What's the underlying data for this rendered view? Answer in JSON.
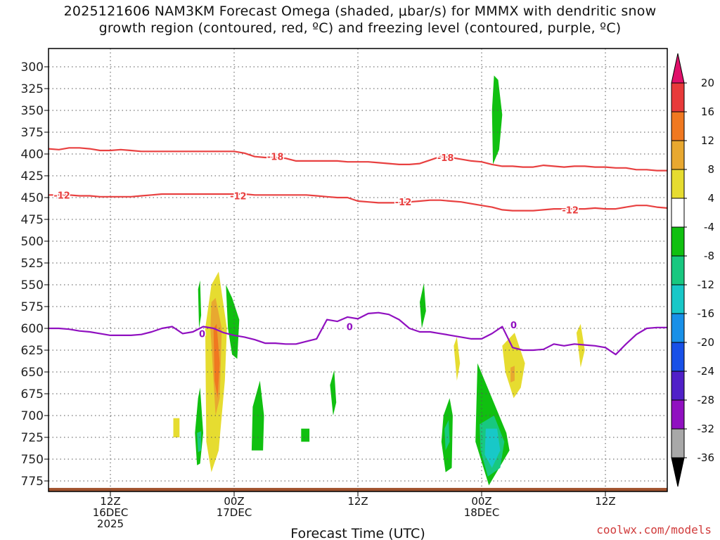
{
  "chart_data": {
    "type": "heatmap",
    "title": "2025121606 NAM3KM Forecast Omega (shaded, μbar/s) for MMMX with dendritic snow growth region (contoured, red, ºC) and freezing level (contoured, purple, ºC)",
    "title_lines": [
      "2025121606 NAM3KM Forecast Omega (shaded, μbar/s) for MMMX with dendritic snow",
      "growth region (contoured, red, ºC) and freezing level (contoured, purple, ºC)"
    ],
    "xlabel": "Forecast Time (UTC)",
    "ylabel": "",
    "y_axis": {
      "reversed": true,
      "ticks": [
        300,
        325,
        350,
        375,
        400,
        425,
        450,
        475,
        500,
        525,
        550,
        575,
        600,
        625,
        650,
        675,
        700,
        725,
        750,
        775
      ]
    },
    "x_axis": {
      "ticks": [
        {
          "hour": 6,
          "lines": [
            "12Z",
            "16DEC",
            "2025"
          ]
        },
        {
          "hour": 18,
          "lines": [
            "00Z",
            "17DEC"
          ]
        },
        {
          "hour": 30,
          "lines": [
            "12Z"
          ]
        },
        {
          "hour": 42,
          "lines": [
            "00Z",
            "18DEC"
          ]
        },
        {
          "hour": 54,
          "lines": [
            "12Z"
          ]
        }
      ],
      "range": [
        0,
        60
      ]
    },
    "grid": true,
    "colorbar": {
      "labels": [
        "20",
        "16",
        "12",
        "8",
        "4",
        "-4",
        "-8",
        "-12",
        "-16",
        "-20",
        "-24",
        "-28",
        "-32",
        "-36"
      ],
      "colors": [
        "#e0106a",
        "#e83a3a",
        "#f07820",
        "#e8a830",
        "#e6dc30",
        "#ffffff",
        "#10c010",
        "#18c880",
        "#18c8c8",
        "#1890e8",
        "#1850e8",
        "#5020c8",
        "#9010c0",
        "#a8a8a8",
        "#000000"
      ]
    },
    "series": [
      {
        "name": "-18",
        "color": "#e84040",
        "x": [
          0,
          1,
          2,
          3,
          4,
          5,
          6,
          7,
          8,
          9,
          10,
          11,
          12,
          13,
          14,
          15,
          16,
          17,
          18,
          19,
          20,
          21,
          22,
          23,
          24,
          25,
          26,
          27,
          28,
          29,
          30,
          31,
          32,
          33,
          34,
          35,
          36,
          37,
          38,
          39,
          40,
          41,
          42,
          43,
          44,
          45,
          46,
          47,
          48,
          49,
          50,
          51,
          52,
          53,
          54,
          55,
          56,
          57,
          58,
          59,
          60
        ],
        "p": [
          394,
          395,
          393,
          393,
          394,
          396,
          396,
          395,
          396,
          397,
          397,
          397,
          397,
          397,
          397,
          397,
          397,
          397,
          397,
          399,
          403,
          404,
          404,
          405,
          408,
          408,
          408,
          408,
          408,
          409,
          409,
          409,
          410,
          411,
          412,
          412,
          411,
          407,
          403,
          404,
          406,
          408,
          409,
          412,
          414,
          414,
          415,
          415,
          413,
          414,
          415,
          414,
          414,
          415,
          415,
          416,
          416,
          418,
          418,
          419,
          419
        ],
        "labels": [
          {
            "x": 22,
            "p": 403
          },
          {
            "x": 38.5,
            "p": 404
          }
        ]
      },
      {
        "name": "-12",
        "color": "#e84040",
        "x": [
          0,
          1,
          2,
          3,
          4,
          5,
          6,
          7,
          8,
          9,
          10,
          11,
          12,
          13,
          14,
          15,
          16,
          17,
          18,
          19,
          20,
          21,
          22,
          23,
          24,
          25,
          26,
          27,
          28,
          29,
          30,
          31,
          32,
          33,
          34,
          35,
          36,
          37,
          38,
          39,
          40,
          41,
          42,
          43,
          44,
          45,
          46,
          47,
          48,
          49,
          50,
          51,
          52,
          53,
          54,
          55,
          56,
          57,
          58,
          59,
          60
        ],
        "p": [
          447,
          447,
          447,
          448,
          448,
          449,
          449,
          449,
          449,
          448,
          447,
          446,
          446,
          446,
          446,
          446,
          446,
          446,
          446,
          446,
          447,
          447,
          447,
          447,
          447,
          447,
          448,
          449,
          450,
          450,
          454,
          455,
          456,
          456,
          456,
          455,
          454,
          453,
          453,
          454,
          455,
          457,
          459,
          461,
          464,
          465,
          465,
          465,
          464,
          463,
          463,
          463,
          463,
          462,
          463,
          463,
          461,
          459,
          459,
          461,
          462
        ],
        "labels": [
          {
            "x": 1.3,
            "p": 447
          },
          {
            "x": 18.4,
            "p": 448
          },
          {
            "x": 34.4,
            "p": 455
          },
          {
            "x": 50.6,
            "p": 464
          }
        ]
      },
      {
        "name": "0",
        "color": "#9010c0",
        "x": [
          0,
          1,
          2,
          3,
          4,
          5,
          6,
          7,
          8,
          9,
          10,
          11,
          12,
          13,
          14,
          15,
          16,
          17,
          18,
          19,
          20,
          21,
          22,
          23,
          24,
          25,
          26,
          27,
          28,
          29,
          30,
          31,
          32,
          33,
          34,
          35,
          36,
          37,
          38,
          39,
          40,
          41,
          42,
          43,
          44,
          45,
          46,
          47,
          48,
          49,
          50,
          51,
          52,
          53,
          54,
          55,
          56,
          57,
          58,
          59,
          60
        ],
        "p": [
          600,
          600,
          601,
          603,
          604,
          606,
          608,
          608,
          608,
          607,
          604,
          600,
          598,
          606,
          604,
          598,
          600,
          605,
          608,
          610,
          613,
          617,
          617,
          618,
          618,
          615,
          612,
          590,
          592,
          587,
          589,
          583,
          582,
          584,
          590,
          600,
          604,
          604,
          606,
          608,
          610,
          612,
          612,
          606,
          598,
          622,
          625,
          625,
          624,
          618,
          620,
          618,
          619,
          620,
          622,
          630,
          618,
          607,
          600,
          599,
          599
        ],
        "labels": [
          {
            "x": 14.9,
            "p": 606
          },
          {
            "x": 29.2,
            "p": 598
          },
          {
            "x": 45.1,
            "p": 596
          }
        ]
      }
    ],
    "shaded_regions": [
      {
        "level": 8,
        "color": "#e6dc30",
        "x": [
          15.8,
          16.5,
          17.3,
          17.1,
          16.5,
          15.8,
          15.3,
          15.2
        ],
        "p": [
          550,
          535,
          600,
          660,
          740,
          765,
          730,
          600
        ]
      },
      {
        "level": 12,
        "color": "#e8a830",
        "x": [
          15.8,
          16.2,
          16.8,
          16.6,
          16.2,
          15.7
        ],
        "p": [
          570,
          565,
          600,
          680,
          700,
          600
        ]
      },
      {
        "level": 16,
        "color": "#f07820",
        "x": [
          16,
          16.3,
          16.6,
          16.4,
          16.1
        ],
        "p": [
          600,
          595,
          640,
          680,
          660
        ]
      },
      {
        "level": 4,
        "color": "#e6dc30",
        "x": [
          12.1,
          12.7,
          12.7,
          12.1
        ],
        "p": [
          703,
          703,
          725,
          725
        ]
      },
      {
        "level": 4,
        "color": "#e6dc30",
        "x": [
          44,
          45.2,
          46.2,
          45.8,
          45.1,
          44.3
        ],
        "p": [
          620,
          605,
          640,
          668,
          680,
          650
        ]
      },
      {
        "level": 8,
        "color": "#e8a830",
        "x": [
          44.8,
          45.2,
          45.2,
          44.8
        ],
        "p": [
          645,
          643,
          660,
          662
        ]
      },
      {
        "level": 4,
        "color": "#e6dc30",
        "x": [
          39.3,
          39.6,
          39.9,
          39.6
        ],
        "p": [
          620,
          610,
          640,
          660
        ]
      },
      {
        "level": 4,
        "color": "#e6dc30",
        "x": [
          51.2,
          51.6,
          52,
          51.6
        ],
        "p": [
          605,
          595,
          625,
          645
        ]
      },
      {
        "level": -4,
        "color": "#10c010",
        "x": [
          14.5,
          14.7,
          14.8,
          14.6
        ],
        "p": [
          555,
          545,
          585,
          600
        ]
      },
      {
        "level": -4,
        "color": "#10c010",
        "x": [
          14.5,
          14.7,
          15,
          14.7,
          14.4,
          14.2
        ],
        "p": [
          680,
          668,
          720,
          755,
          757,
          720
        ]
      },
      {
        "level": -4,
        "color": "#10c010",
        "x": [
          17.2,
          17.8,
          18.5,
          18.3,
          17.8,
          17.4
        ],
        "p": [
          550,
          565,
          590,
          635,
          630,
          600
        ]
      },
      {
        "level": -4,
        "color": "#10c010",
        "x": [
          19.8,
          20.5,
          20.9,
          20.8,
          19.7
        ],
        "p": [
          690,
          660,
          700,
          740,
          740
        ]
      },
      {
        "level": -4,
        "color": "#10c010",
        "x": [
          24.5,
          25.3,
          25.3,
          24.5
        ],
        "p": [
          715,
          715,
          730,
          730
        ]
      },
      {
        "level": -4,
        "color": "#10c010",
        "x": [
          27.3,
          27.7,
          27.9,
          27.6
        ],
        "p": [
          665,
          648,
          685,
          700
        ]
      },
      {
        "level": -4,
        "color": "#10c010",
        "x": [
          36,
          36.4,
          36.6,
          36.2
        ],
        "p": [
          570,
          548,
          580,
          600
        ]
      },
      {
        "level": -4,
        "color": "#10c010",
        "x": [
          38.3,
          38.9,
          39.2,
          39.1,
          38.5,
          38.1
        ],
        "p": [
          700,
          680,
          700,
          760,
          765,
          730
        ]
      },
      {
        "level": -4,
        "color": "#10c010",
        "x": [
          43.2,
          43.6,
          44.0,
          43.7,
          43.1,
          43
        ],
        "p": [
          310,
          315,
          355,
          395,
          412,
          350
        ]
      },
      {
        "level": -4,
        "color": "#10c010",
        "x": [
          41.6,
          43.0,
          44.4,
          44.7,
          42.7,
          41.4
        ],
        "p": [
          640,
          680,
          720,
          740,
          780,
          730
        ]
      },
      {
        "level": -8,
        "color": "#18c880",
        "x": [
          38.4,
          38.8,
          38.9,
          38.5
        ],
        "p": [
          715,
          705,
          730,
          740
        ]
      },
      {
        "level": -8,
        "color": "#18c880",
        "x": [
          14.4,
          14.8,
          14.8,
          14.5
        ],
        "p": [
          720,
          718,
          740,
          742
        ]
      },
      {
        "level": -8,
        "color": "#18c880",
        "x": [
          41.8,
          43.2,
          44.2,
          43.8,
          42.6,
          41.9
        ],
        "p": [
          710,
          700,
          730,
          760,
          770,
          740
        ]
      },
      {
        "level": -12,
        "color": "#18c8c8",
        "x": [
          42.4,
          43.5,
          43.8,
          43,
          42.3
        ],
        "p": [
          715,
          715,
          740,
          760,
          745
        ]
      }
    ],
    "terrain": {
      "color": "#a0522d",
      "p": 783
    }
  },
  "brand": "coolwx.com/models"
}
